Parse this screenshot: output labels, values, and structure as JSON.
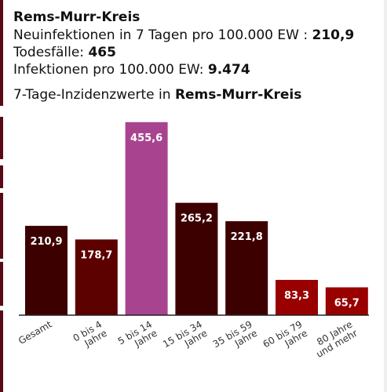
{
  "header": {
    "region": "Rems-Murr-Kreis",
    "lines": [
      {
        "label": "Neuinfektionen in 7 Tagen pro 100.000 EW : ",
        "value": "210,9"
      },
      {
        "label": "Todesfälle: ",
        "value": "465"
      },
      {
        "label": "Infektionen pro 100.000 EW: ",
        "value": "9.474"
      }
    ]
  },
  "chart_title": {
    "prefix": "7-Tage-Inzidenzwerte in ",
    "region": "Rems-Murr-Kreis"
  },
  "chart_data": {
    "type": "bar",
    "title": "7-Tage-Inzidenzwerte in Rems-Murr-Kreis",
    "xlabel": "",
    "ylabel": "",
    "ylim": [
      0,
      470
    ],
    "grid": false,
    "categories": [
      [
        "Gesamt"
      ],
      [
        "0 bis 4",
        "Jahre"
      ],
      [
        "5 bis 14",
        "Jahre"
      ],
      [
        "15 bis 34",
        "Jahre"
      ],
      [
        "35 bis 59",
        "Jahre"
      ],
      [
        "60 bis 79",
        "Jahre"
      ],
      [
        "80 Jahre",
        "und mehr"
      ]
    ],
    "values": [
      210.9,
      178.7,
      455.6,
      265.2,
      221.8,
      83.3,
      65.7
    ],
    "labels": [
      "210,9",
      "178,7",
      "455,6",
      "265,2",
      "221,8",
      "83,3",
      "65,7"
    ],
    "colors": [
      "#3d0000",
      "#5c0000",
      "#a8448f",
      "#3d0000",
      "#3d0000",
      "#990000",
      "#990000"
    ]
  }
}
